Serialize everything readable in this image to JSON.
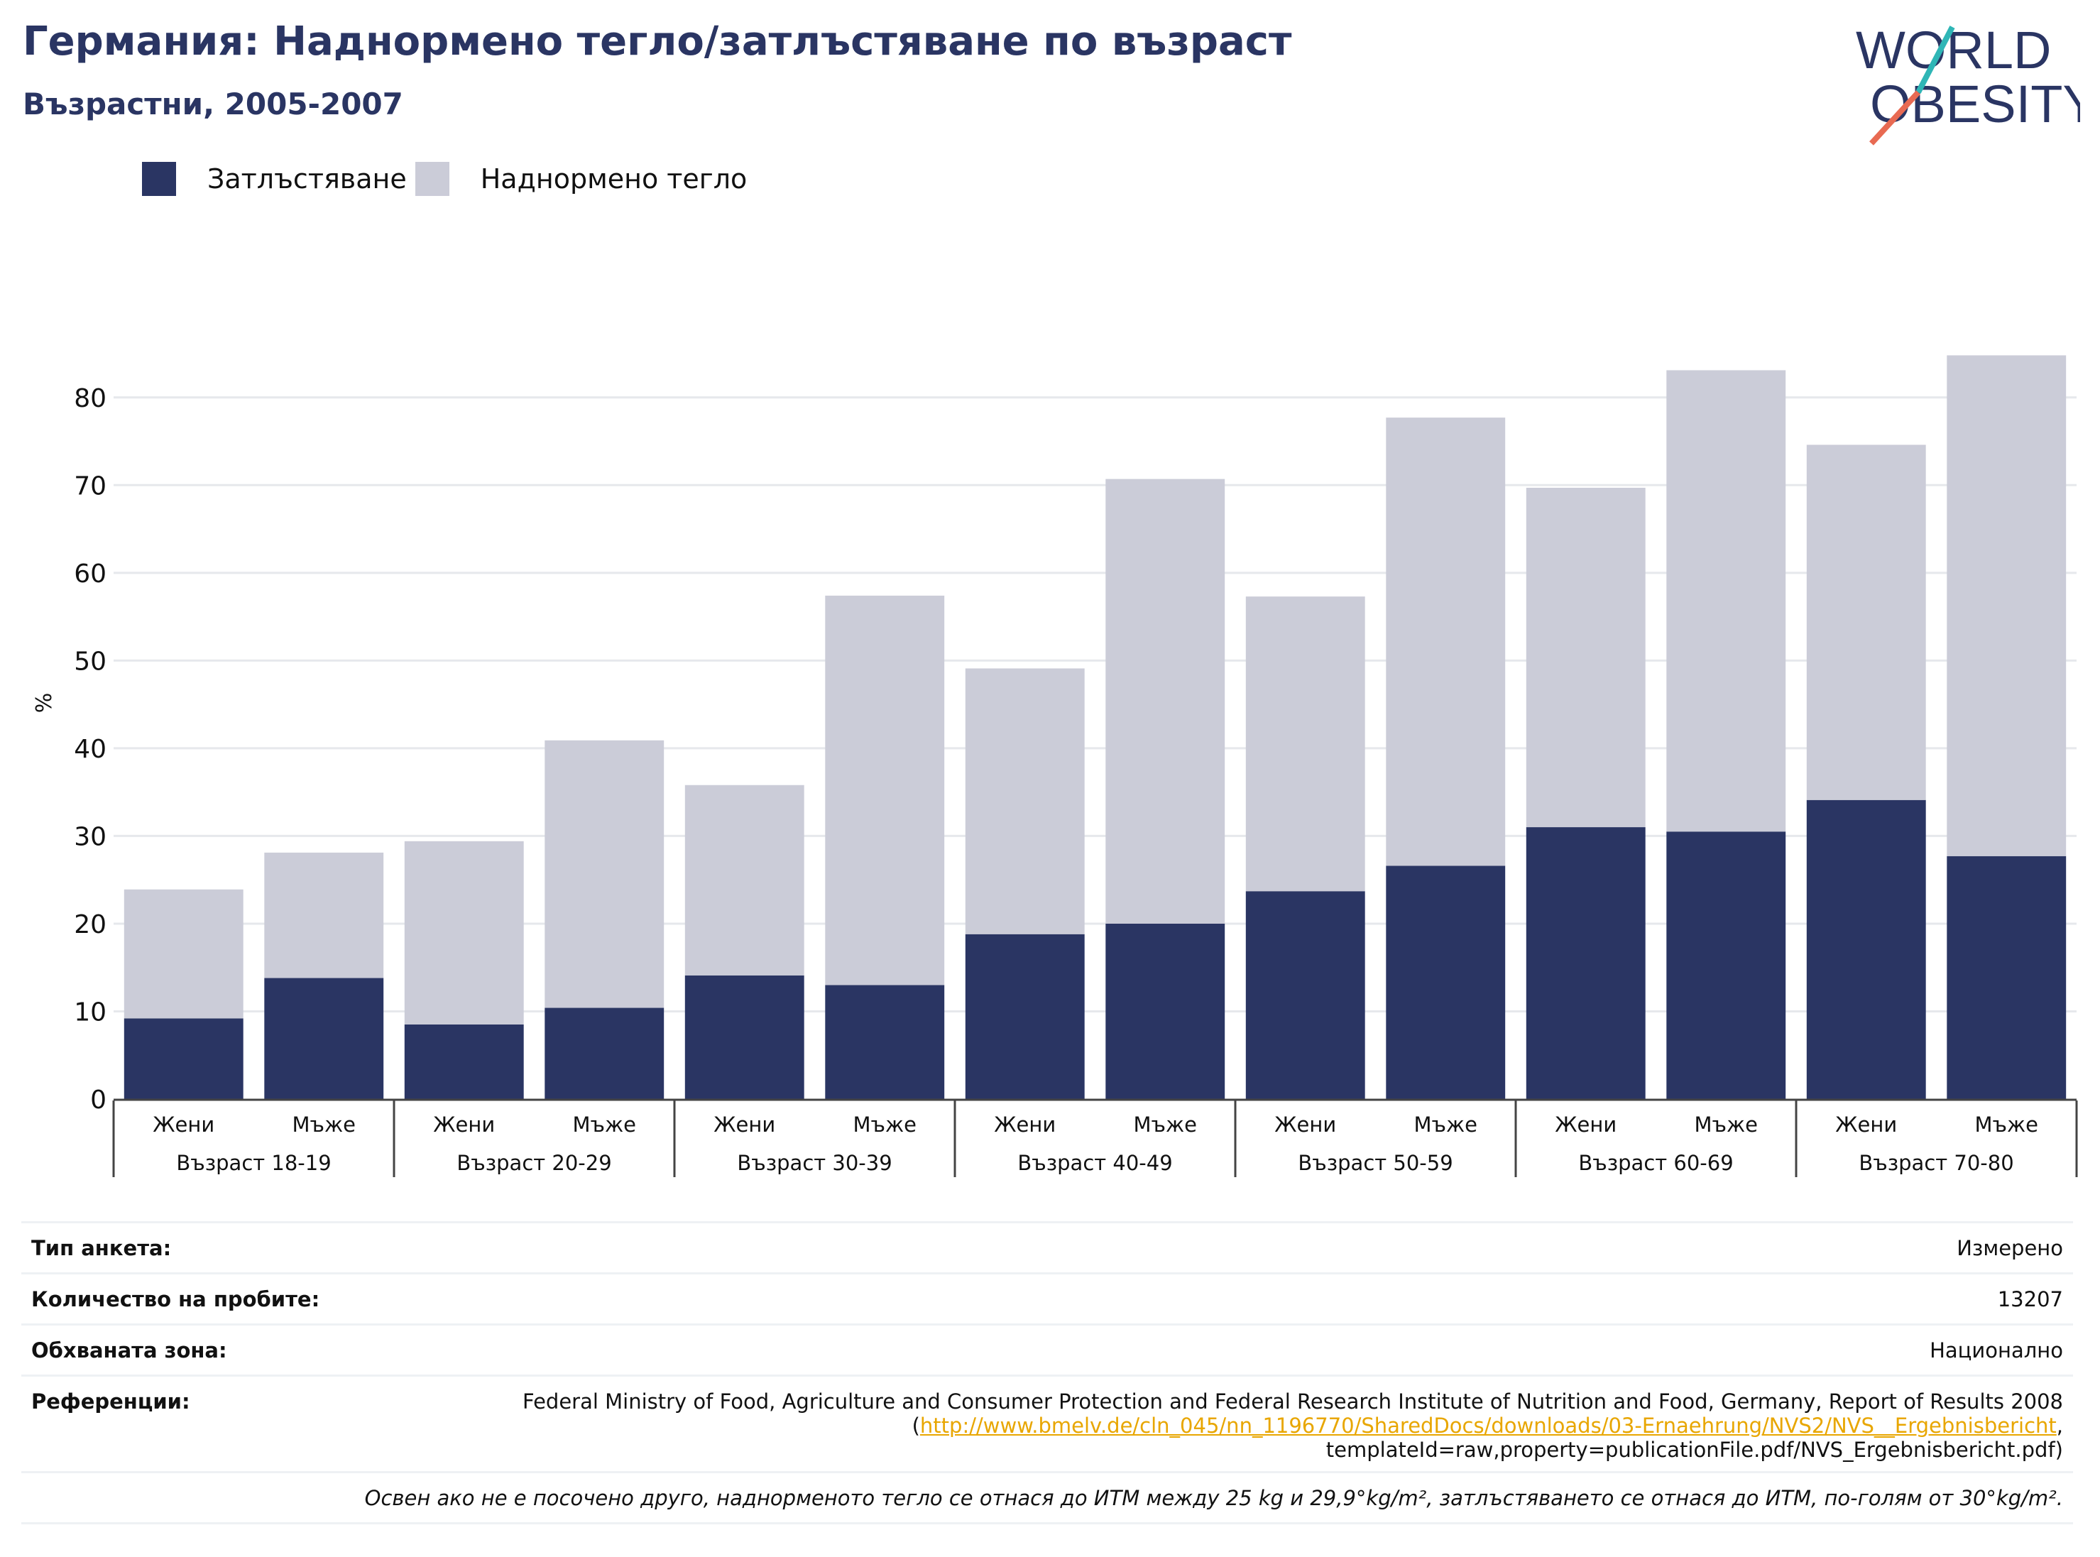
{
  "header": {
    "title": "Германия: Наднормено тегло/затлъстяване по възраст",
    "subtitle": "Възрастни, 2005-2007"
  },
  "logo": {
    "line1": "WORLD",
    "line2": "OBESITY"
  },
  "legend": [
    {
      "label": "Затлъстяване",
      "color": "#2a3563"
    },
    {
      "label": "Наднормено тегло",
      "color": "#cbccd8"
    }
  ],
  "chart_data": {
    "type": "bar",
    "stacked": true,
    "ylabel": "%",
    "ylim": [
      0,
      85
    ],
    "yticks": [
      0,
      10,
      20,
      30,
      40,
      50,
      60,
      70,
      80
    ],
    "grid": true,
    "legend_position": "top-left",
    "groups": [
      "Възраст 18-19",
      "Възраст 20-29",
      "Възраст 30-39",
      "Възраст 40-49",
      "Възраст 50-59",
      "Възраст 60-69",
      "Възраст 70-80"
    ],
    "subcategories": [
      "Жени",
      "Мъже"
    ],
    "categories": [
      "Жени",
      "Мъже",
      "Жени",
      "Мъже",
      "Жени",
      "Мъже",
      "Жени",
      "Мъже",
      "Жени",
      "Мъже",
      "Жени",
      "Мъже",
      "Жени",
      "Мъже"
    ],
    "series": [
      {
        "name": "Затлъстяване",
        "color": "#2a3563",
        "values": [
          9.2,
          13.8,
          8.5,
          10.4,
          14.1,
          13.0,
          18.8,
          20.0,
          23.7,
          26.6,
          31.0,
          30.5,
          34.1,
          27.7
        ]
      },
      {
        "name": "Наднормено тегло",
        "color": "#cbccd8",
        "values": [
          14.7,
          14.3,
          20.9,
          30.5,
          21.7,
          44.4,
          30.3,
          50.7,
          33.6,
          51.1,
          38.7,
          52.6,
          40.5,
          57.1
        ]
      }
    ]
  },
  "info": {
    "survey_type": {
      "label": "Тип анкета:",
      "value": "Измерено"
    },
    "sample_size": {
      "label": "Количество на пробите:",
      "value": "13207"
    },
    "coverage": {
      "label": "Обхваната зона:",
      "value": "Национално"
    },
    "references": {
      "label": "Референции:",
      "text_before": "Federal Ministry of Food, Agriculture and Consumer Protection and Federal Research Institute of Nutrition and Food, Germany, Report of Results 2008 (",
      "link": "http://www.bmelv.de/cln_045/nn_1196770/SharedDocs/downloads/03-Ernaehrung/NVS2/NVS__Ergebnisbericht",
      "text_after": ", templateId=raw,property=publicationFile.pdf/NVS_Ergebnisbericht.pdf)"
    },
    "note": "Освен ако не е посочено друго, наднорменото тегло се отнася до ИТМ между 25 kg и 29,9°kg/m², затлъстяването се отнася до ИТМ, по-голям от 30°kg/m²."
  }
}
